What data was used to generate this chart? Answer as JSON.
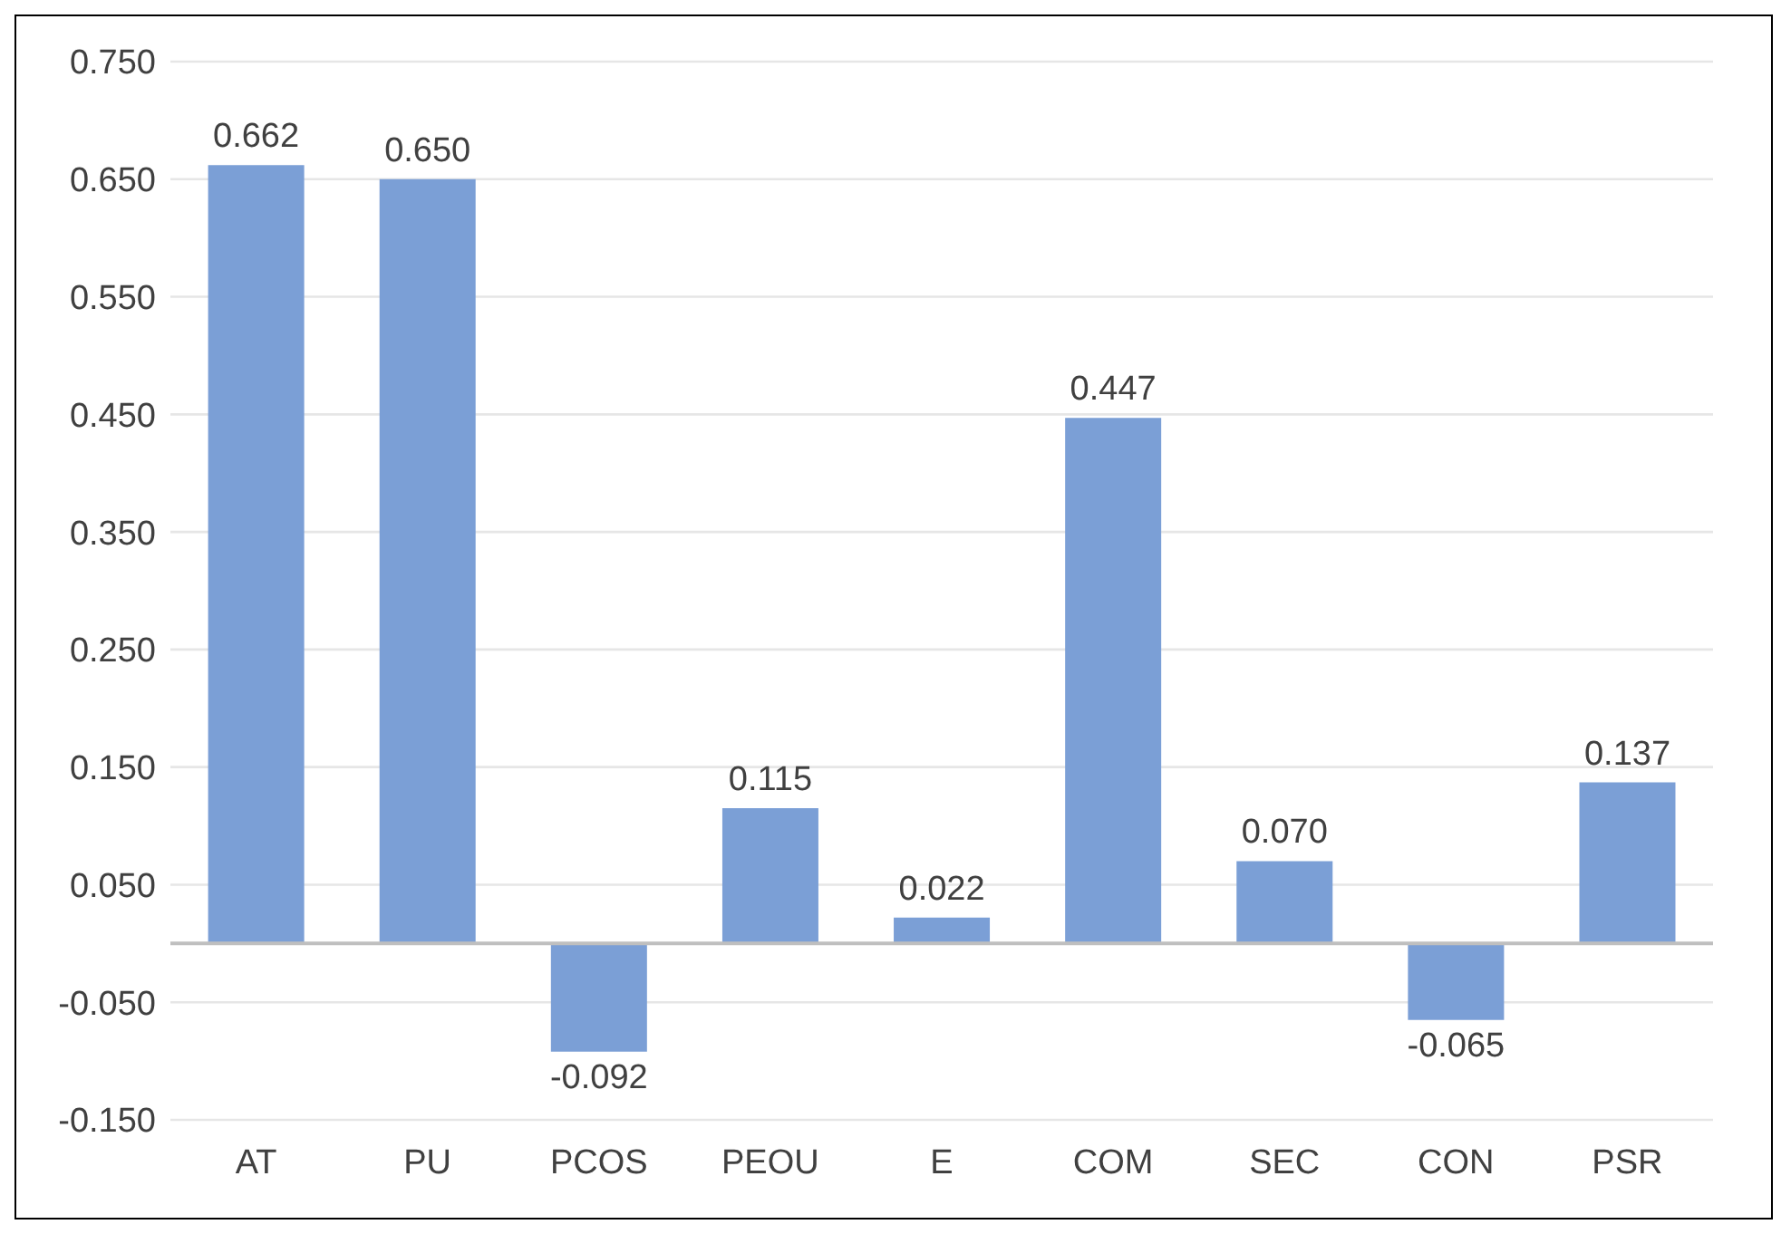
{
  "chart_data": {
    "type": "bar",
    "categories": [
      "AT",
      "PU",
      "PCOS",
      "PEOU",
      "E",
      "COM",
      "SEC",
      "CON",
      "PSR"
    ],
    "values": [
      0.662,
      0.65,
      -0.092,
      0.115,
      0.022,
      0.447,
      0.07,
      -0.065,
      0.137
    ],
    "value_labels": [
      "0.662",
      "0.650",
      "-0.092",
      "0.115",
      "0.022",
      "0.447",
      "0.070",
      "-0.065",
      "0.137"
    ],
    "color": "#7b9fd6",
    "ylim": [
      -0.15,
      0.75
    ],
    "yticks": [
      {
        "value": -0.15,
        "label": "-0.150"
      },
      {
        "value": -0.05,
        "label": "-0.050"
      },
      {
        "value": 0.05,
        "label": "0.050"
      },
      {
        "value": 0.15,
        "label": "0.150"
      },
      {
        "value": 0.25,
        "label": "0.250"
      },
      {
        "value": 0.35,
        "label": "0.350"
      },
      {
        "value": 0.45,
        "label": "0.450"
      },
      {
        "value": 0.55,
        "label": "0.550"
      },
      {
        "value": 0.65,
        "label": "0.650"
      },
      {
        "value": 0.75,
        "label": "0.750"
      }
    ],
    "ref_lines": [
      {
        "axis": "y",
        "value": 0,
        "color": "#bfbfbf"
      }
    ],
    "grid": "y"
  }
}
